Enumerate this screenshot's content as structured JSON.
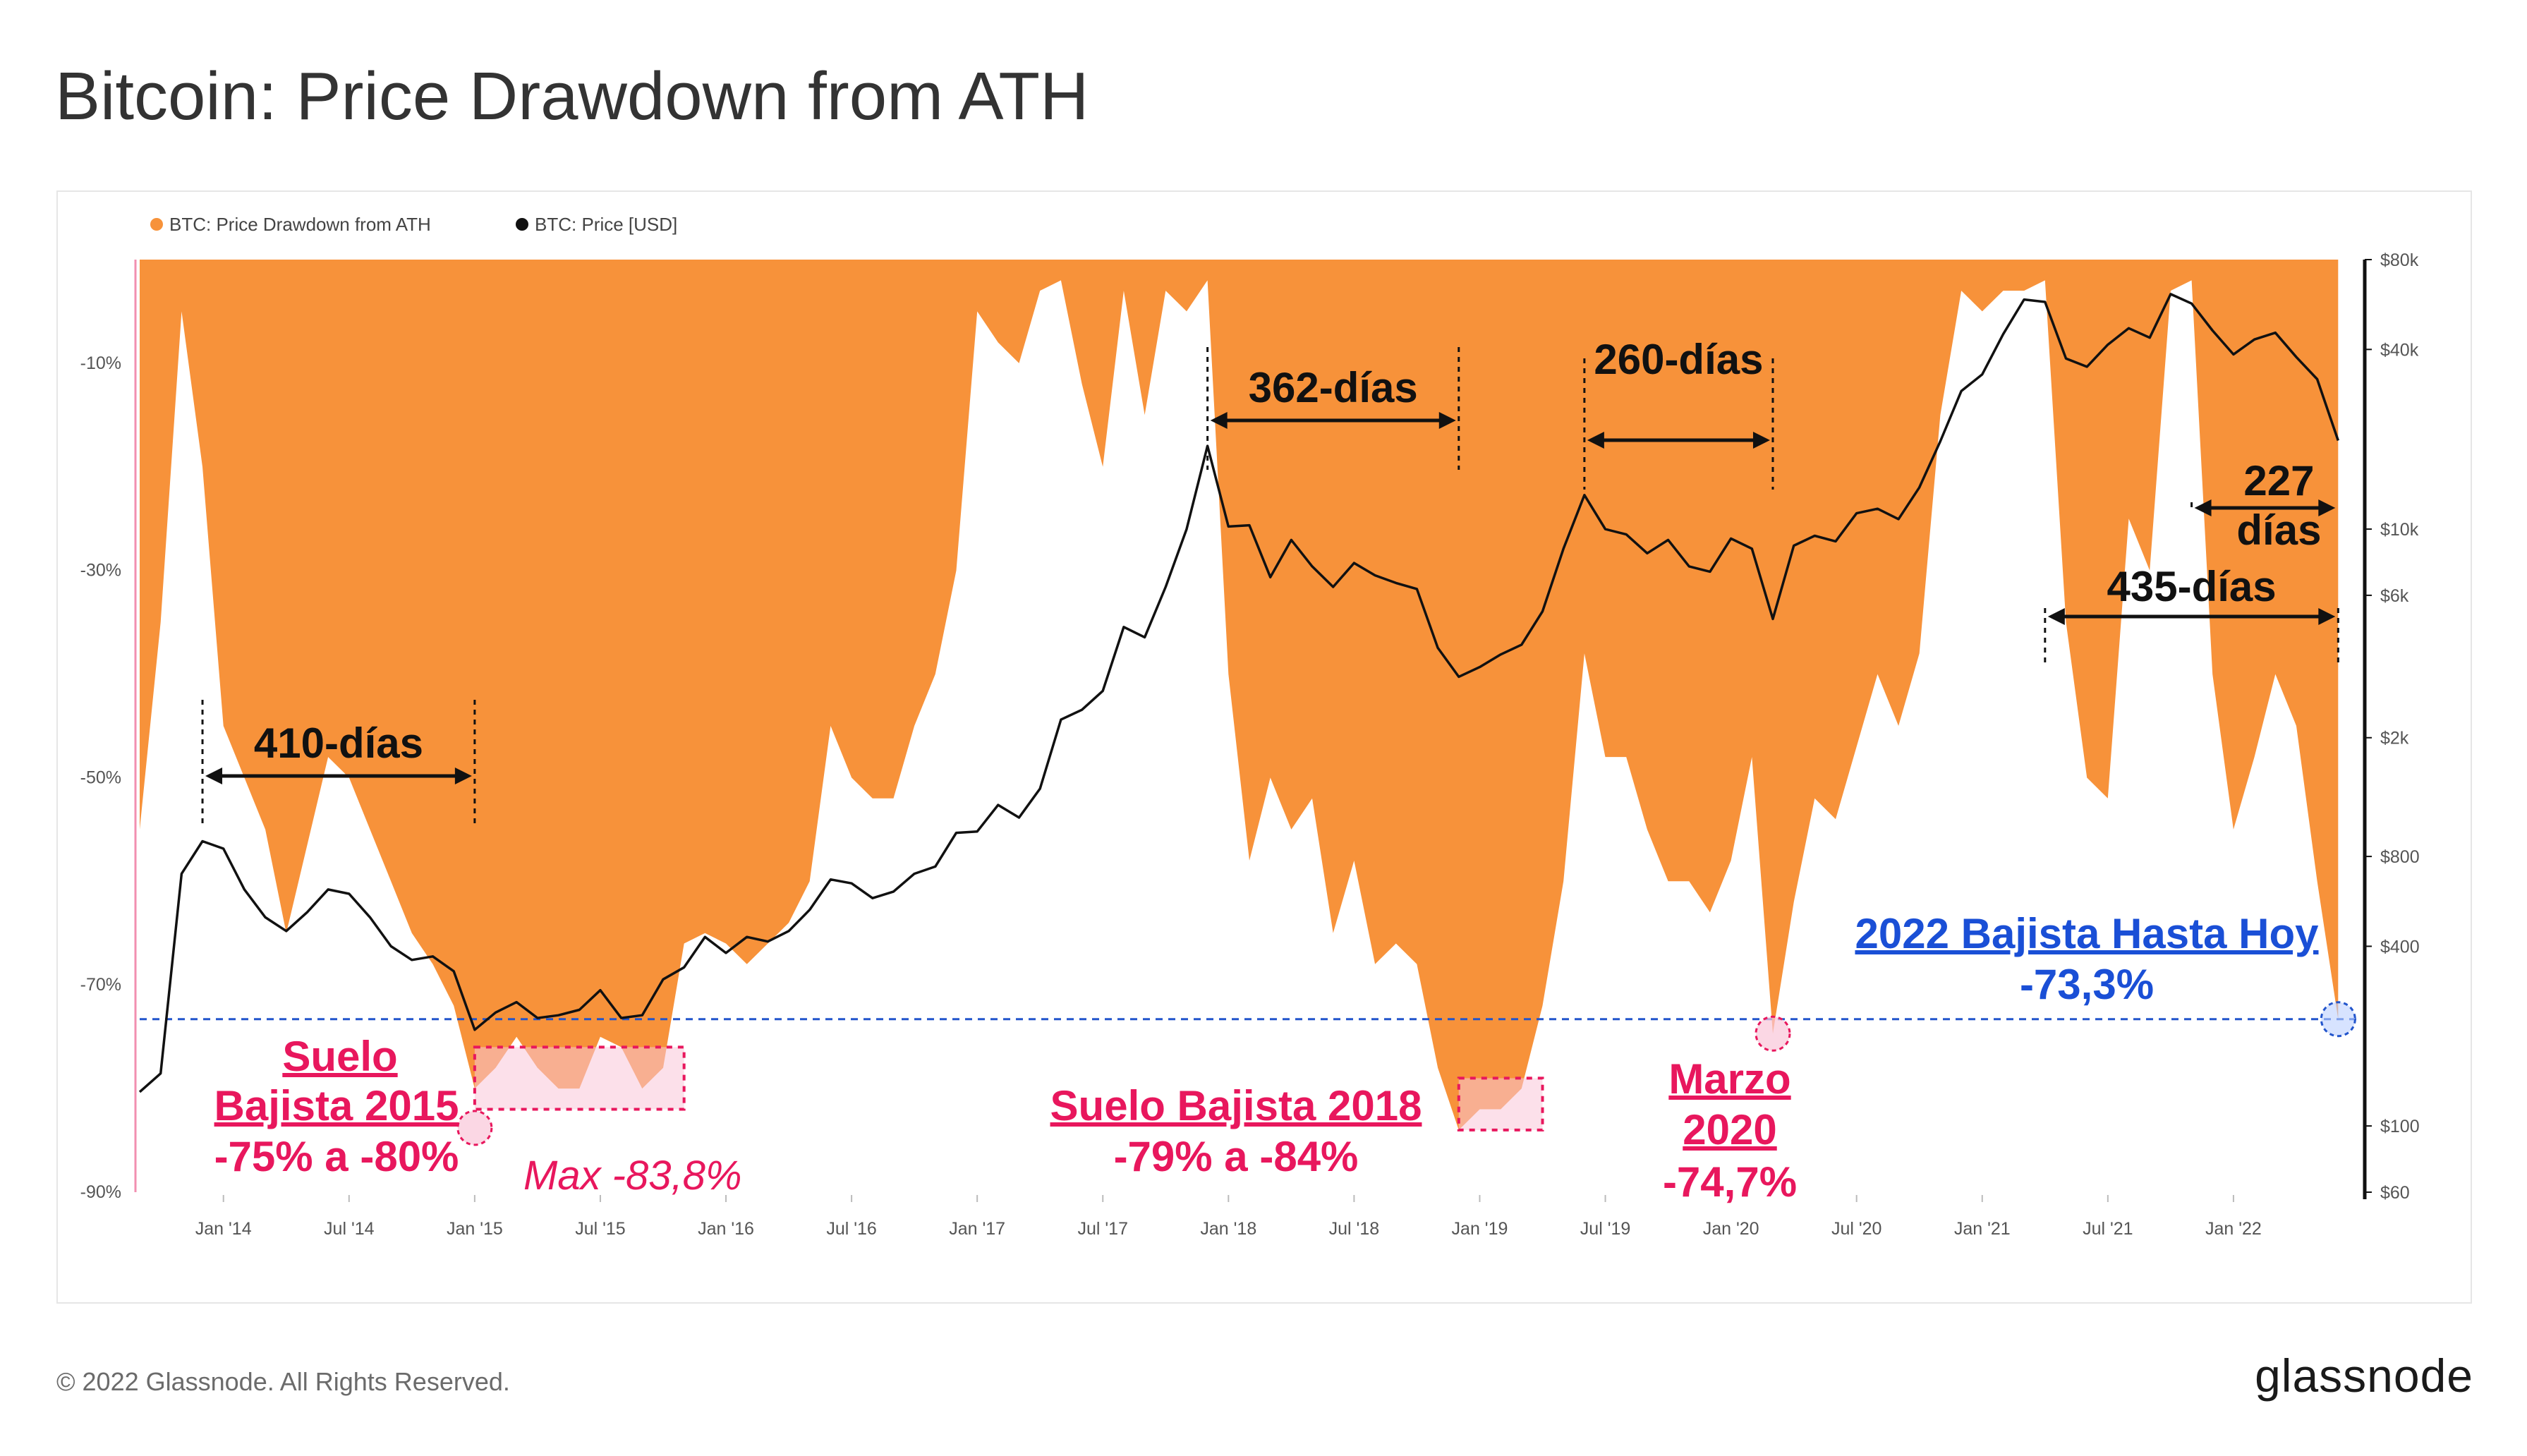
{
  "title": "Bitcoin: Price Drawdown from ATH",
  "footer": {
    "copyright": "© 2022 Glassnode. All Rights Reserved.",
    "brand": "glassnode"
  },
  "colors": {
    "drawdown": "#f7923a",
    "price": "#111111",
    "annotation_magenta": "#e8175d",
    "annotation_blue": "#1a4fd6",
    "current_line": "#2255cc",
    "axis_text": "#555555"
  },
  "chart_data": {
    "type": "area",
    "legend": [
      "BTC: Price Drawdown from ATH",
      "BTC: Price [USD]"
    ],
    "legend_position": "top-left",
    "grid": false,
    "x_ticks": [
      "Jan '14",
      "Jul '14",
      "Jan '15",
      "Jul '15",
      "Jan '16",
      "Jul '16",
      "Jan '17",
      "Jul '17",
      "Jan '18",
      "Jul '18",
      "Jan '19",
      "Jul '19",
      "Jan '20",
      "Jul '20",
      "Jan '21",
      "Jul '21",
      "Jan '22"
    ],
    "x_range": [
      "2013-09",
      "2022-07"
    ],
    "y_left": {
      "label": "",
      "ticks": [
        "-10%",
        "-30%",
        "-50%",
        "-70%",
        "-90%"
      ],
      "range": [
        -90,
        0
      ]
    },
    "y_right": {
      "label": "",
      "scale": "log",
      "ticks": [
        "$80k",
        "$40k",
        "$10k",
        "$6k",
        "$2k",
        "$800",
        "$400",
        "$100",
        "$60"
      ],
      "range": [
        60,
        80000
      ]
    },
    "series": [
      {
        "name": "BTC: Price Drawdown from ATH",
        "unit": "%",
        "points": [
          [
            "2013-09",
            -55
          ],
          [
            "2013-10",
            -35
          ],
          [
            "2013-11",
            -5
          ],
          [
            "2013-12",
            -20
          ],
          [
            "2014-01",
            -45
          ],
          [
            "2014-02",
            -50
          ],
          [
            "2014-03",
            -55
          ],
          [
            "2014-04",
            -65
          ],
          [
            "2014-06",
            -48
          ],
          [
            "2014-07",
            -50
          ],
          [
            "2014-08",
            -55
          ],
          [
            "2014-09",
            -60
          ],
          [
            "2014-10",
            -65
          ],
          [
            "2014-11",
            -68
          ],
          [
            "2014-12",
            -72
          ],
          [
            "2015-01",
            -80
          ],
          [
            "2015-02",
            -78
          ],
          [
            "2015-03",
            -75
          ],
          [
            "2015-04",
            -78
          ],
          [
            "2015-05",
            -80
          ],
          [
            "2015-06",
            -80
          ],
          [
            "2015-07",
            -75
          ],
          [
            "2015-08",
            -76
          ],
          [
            "2015-09",
            -80
          ],
          [
            "2015-10",
            -78
          ],
          [
            "2015-11",
            -66
          ],
          [
            "2015-12",
            -65
          ],
          [
            "2016-01",
            -66
          ],
          [
            "2016-02",
            -68
          ],
          [
            "2016-03",
            -66
          ],
          [
            "2016-04",
            -64
          ],
          [
            "2016-05",
            -60
          ],
          [
            "2016-06",
            -45
          ],
          [
            "2016-07",
            -50
          ],
          [
            "2016-08",
            -52
          ],
          [
            "2016-09",
            -52
          ],
          [
            "2016-10",
            -45
          ],
          [
            "2016-11",
            -40
          ],
          [
            "2016-12",
            -30
          ],
          [
            "2017-01",
            -5
          ],
          [
            "2017-02",
            -8
          ],
          [
            "2017-03",
            -10
          ],
          [
            "2017-04",
            -3
          ],
          [
            "2017-05",
            -2
          ],
          [
            "2017-06",
            -12
          ],
          [
            "2017-07",
            -20
          ],
          [
            "2017-08",
            -3
          ],
          [
            "2017-09",
            -15
          ],
          [
            "2017-10",
            -3
          ],
          [
            "2017-11",
            -5
          ],
          [
            "2017-12",
            -2
          ],
          [
            "2018-01",
            -40
          ],
          [
            "2018-02",
            -58
          ],
          [
            "2018-03",
            -50
          ],
          [
            "2018-04",
            -55
          ],
          [
            "2018-05",
            -52
          ],
          [
            "2018-06",
            -65
          ],
          [
            "2018-07",
            -58
          ],
          [
            "2018-08",
            -68
          ],
          [
            "2018-09",
            -66
          ],
          [
            "2018-10",
            -68
          ],
          [
            "2018-11",
            -78
          ],
          [
            "2018-12",
            -84
          ],
          [
            "2019-01",
            -82
          ],
          [
            "2019-02",
            -82
          ],
          [
            "2019-03",
            -80
          ],
          [
            "2019-04",
            -72
          ],
          [
            "2019-05",
            -60
          ],
          [
            "2019-06",
            -38
          ],
          [
            "2019-07",
            -48
          ],
          [
            "2019-08",
            -48
          ],
          [
            "2019-09",
            -55
          ],
          [
            "2019-10",
            -60
          ],
          [
            "2019-11",
            -60
          ],
          [
            "2019-12",
            -63
          ],
          [
            "2020-01",
            -58
          ],
          [
            "2020-02",
            -48
          ],
          [
            "2020-03",
            -74.7
          ],
          [
            "2020-04",
            -62
          ],
          [
            "2020-05",
            -52
          ],
          [
            "2020-06",
            -54
          ],
          [
            "2020-07",
            -47
          ],
          [
            "2020-08",
            -40
          ],
          [
            "2020-09",
            -45
          ],
          [
            "2020-10",
            -38
          ],
          [
            "2020-11",
            -15
          ],
          [
            "2020-12",
            -3
          ],
          [
            "2021-01",
            -5
          ],
          [
            "2021-02",
            -3
          ],
          [
            "2021-03",
            -3
          ],
          [
            "2021-04",
            -2
          ],
          [
            "2021-05",
            -35
          ],
          [
            "2021-06",
            -50
          ],
          [
            "2021-07",
            -52
          ],
          [
            "2021-08",
            -25
          ],
          [
            "2021-09",
            -30
          ],
          [
            "2021-10",
            -3
          ],
          [
            "2021-11",
            -2
          ],
          [
            "2021-12",
            -40
          ],
          [
            "2022-01",
            -55
          ],
          [
            "2022-02",
            -48
          ],
          [
            "2022-03",
            -40
          ],
          [
            "2022-04",
            -45
          ],
          [
            "2022-05",
            -60
          ],
          [
            "2022-06",
            -73.3
          ]
        ]
      },
      {
        "name": "BTC: Price [USD]",
        "unit": "USD",
        "points": [
          [
            "2013-09",
            130
          ],
          [
            "2013-10",
            150
          ],
          [
            "2013-11",
            700
          ],
          [
            "2013-12",
            900
          ],
          [
            "2014-01",
            850
          ],
          [
            "2014-02",
            620
          ],
          [
            "2014-03",
            500
          ],
          [
            "2014-04",
            450
          ],
          [
            "2014-05",
            520
          ],
          [
            "2014-06",
            620
          ],
          [
            "2014-07",
            600
          ],
          [
            "2014-08",
            500
          ],
          [
            "2014-09",
            400
          ],
          [
            "2014-10",
            360
          ],
          [
            "2014-11",
            370
          ],
          [
            "2014-12",
            330
          ],
          [
            "2015-01",
            210
          ],
          [
            "2015-02",
            240
          ],
          [
            "2015-03",
            260
          ],
          [
            "2015-04",
            230
          ],
          [
            "2015-05",
            235
          ],
          [
            "2015-06",
            245
          ],
          [
            "2015-07",
            285
          ],
          [
            "2015-08",
            230
          ],
          [
            "2015-09",
            235
          ],
          [
            "2015-10",
            310
          ],
          [
            "2015-11",
            340
          ],
          [
            "2015-12",
            430
          ],
          [
            "2016-01",
            380
          ],
          [
            "2016-02",
            430
          ],
          [
            "2016-03",
            415
          ],
          [
            "2016-04",
            450
          ],
          [
            "2016-05",
            530
          ],
          [
            "2016-06",
            670
          ],
          [
            "2016-07",
            650
          ],
          [
            "2016-08",
            580
          ],
          [
            "2016-09",
            610
          ],
          [
            "2016-10",
            700
          ],
          [
            "2016-11",
            740
          ],
          [
            "2016-12",
            960
          ],
          [
            "2017-01",
            970
          ],
          [
            "2017-02",
            1190
          ],
          [
            "2017-03",
            1080
          ],
          [
            "2017-04",
            1350
          ],
          [
            "2017-05",
            2300
          ],
          [
            "2017-06",
            2480
          ],
          [
            "2017-07",
            2870
          ],
          [
            "2017-08",
            4700
          ],
          [
            "2017-09",
            4340
          ],
          [
            "2017-10",
            6400
          ],
          [
            "2017-11",
            10000
          ],
          [
            "2017-12",
            19000
          ],
          [
            "2018-01",
            10200
          ],
          [
            "2018-02",
            10300
          ],
          [
            "2018-03",
            6900
          ],
          [
            "2018-04",
            9200
          ],
          [
            "2018-05",
            7500
          ],
          [
            "2018-06",
            6400
          ],
          [
            "2018-07",
            7700
          ],
          [
            "2018-08",
            7000
          ],
          [
            "2018-09",
            6600
          ],
          [
            "2018-10",
            6300
          ],
          [
            "2018-11",
            4000
          ],
          [
            "2018-12",
            3200
          ],
          [
            "2019-01",
            3450
          ],
          [
            "2019-02",
            3800
          ],
          [
            "2019-03",
            4100
          ],
          [
            "2019-04",
            5300
          ],
          [
            "2019-05",
            8600
          ],
          [
            "2019-06",
            13000
          ],
          [
            "2019-07",
            10000
          ],
          [
            "2019-08",
            9600
          ],
          [
            "2019-09",
            8300
          ],
          [
            "2019-10",
            9200
          ],
          [
            "2019-11",
            7500
          ],
          [
            "2019-12",
            7200
          ],
          [
            "2020-01",
            9300
          ],
          [
            "2020-02",
            8600
          ],
          [
            "2020-03",
            5000
          ],
          [
            "2020-04",
            8800
          ],
          [
            "2020-05",
            9500
          ],
          [
            "2020-06",
            9100
          ],
          [
            "2020-07",
            11300
          ],
          [
            "2020-08",
            11700
          ],
          [
            "2020-09",
            10800
          ],
          [
            "2020-10",
            13800
          ],
          [
            "2020-11",
            19700
          ],
          [
            "2020-12",
            29000
          ],
          [
            "2021-01",
            33000
          ],
          [
            "2021-02",
            45000
          ],
          [
            "2021-03",
            58800
          ],
          [
            "2021-04",
            57700
          ],
          [
            "2021-05",
            37300
          ],
          [
            "2021-06",
            35000
          ],
          [
            "2021-07",
            41500
          ],
          [
            "2021-08",
            47100
          ],
          [
            "2021-09",
            43800
          ],
          [
            "2021-10",
            61300
          ],
          [
            "2021-11",
            57000
          ],
          [
            "2021-12",
            46300
          ],
          [
            "2022-01",
            38500
          ],
          [
            "2022-02",
            43200
          ],
          [
            "2022-03",
            45500
          ],
          [
            "2022-04",
            37700
          ],
          [
            "2022-05",
            31800
          ],
          [
            "2022-06",
            19800
          ]
        ]
      }
    ],
    "annotations": {
      "intervals": [
        "410-días",
        "362-días",
        "260-días",
        "227 días",
        "435-días"
      ],
      "floors": [
        {
          "title": [
            "Suelo",
            "Bajista 2015"
          ],
          "range": "-75% a -80%",
          "max": "Max -83,8%"
        },
        {
          "title": [
            "Suelo Bajista 2018"
          ],
          "range": "-79% a -84%"
        },
        {
          "title": [
            "Marzo",
            "2020"
          ],
          "range": "-74,7%"
        }
      ],
      "current": {
        "title": "2022 Bajista Hasta Hoy",
        "value": "-73,3%"
      }
    }
  }
}
